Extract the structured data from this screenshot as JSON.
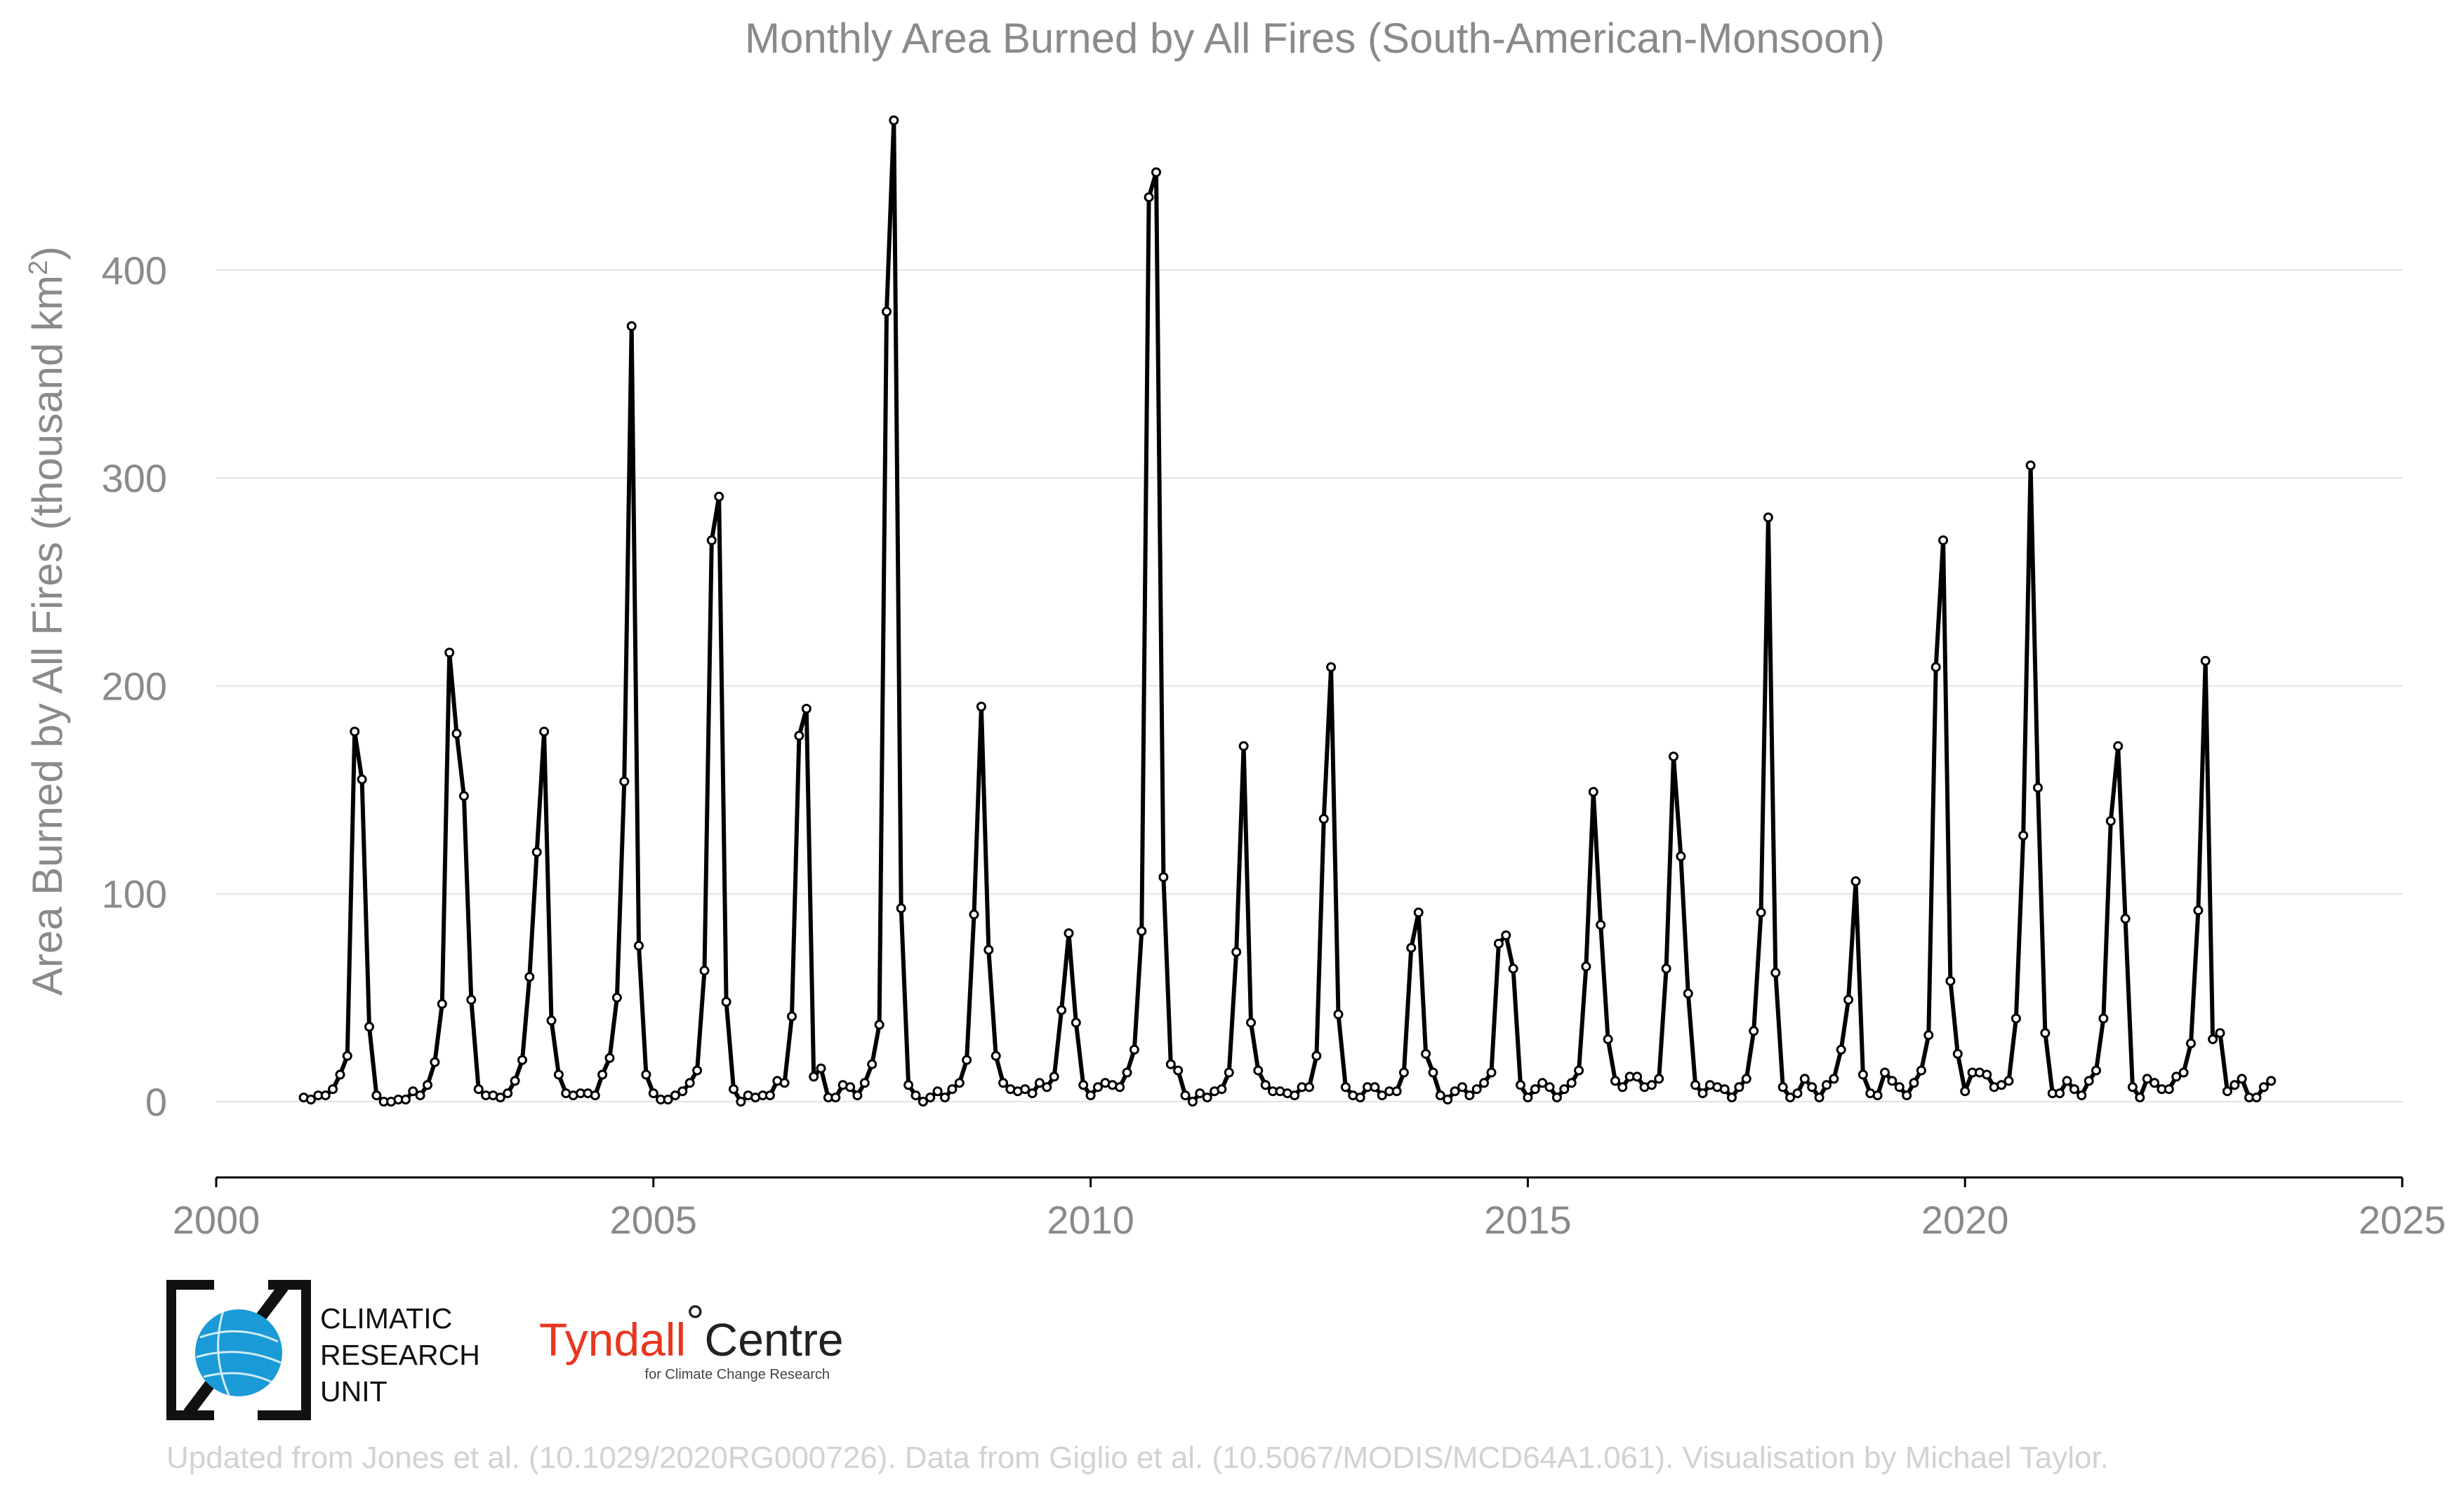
{
  "chart_data": {
    "type": "line",
    "title": "Monthly Area Burned by All Fires (South-American-Monsoon)",
    "ylabel": "Area Burned by All Fires (thousand km",
    "ylabel_sup": "2",
    "ylabel_close": ")",
    "xlabel": "",
    "x_start": "2001-01",
    "x_step": "monthly",
    "xlim": [
      2000,
      2025
    ],
    "ylim": [
      -37,
      470
    ],
    "xticks": [
      2000,
      2005,
      2010,
      2015,
      2020,
      2025
    ],
    "xtick_labels": [
      "2000",
      "2005",
      "2010",
      "2015",
      "2020",
      "2025"
    ],
    "yticks": [
      0,
      100,
      200,
      300,
      400
    ],
    "ytick_labels": [
      "0",
      "100",
      "200",
      "300",
      "400"
    ],
    "grid": "horizontal",
    "series": [
      {
        "values": [
          2,
          1,
          3,
          3,
          6,
          13,
          22,
          178,
          155,
          36,
          3,
          0,
          0,
          1,
          1,
          5,
          3,
          8,
          19,
          47,
          216,
          177,
          147,
          49,
          6,
          3,
          3,
          2,
          4,
          10,
          20,
          60,
          120,
          178,
          39,
          13,
          4,
          3,
          4,
          4,
          3,
          13,
          21,
          50,
          154,
          373,
          75,
          13,
          4,
          1,
          1,
          3,
          5,
          9,
          15,
          63,
          270,
          291,
          48,
          6,
          0,
          3,
          2,
          3,
          3,
          10,
          9,
          41,
          176,
          189,
          12,
          16,
          2,
          2,
          8,
          7,
          3,
          9,
          18,
          37,
          380,
          472,
          93,
          8,
          3,
          0,
          2,
          5,
          2,
          6,
          9,
          20,
          90,
          190,
          73,
          22,
          9,
          6,
          5,
          6,
          4,
          9,
          7,
          12,
          44,
          81,
          38,
          8,
          3,
          7,
          9,
          8,
          7,
          14,
          25,
          82,
          435,
          447,
          108,
          18,
          15,
          3,
          0,
          4,
          2,
          5,
          6,
          14,
          72,
          171,
          38,
          15,
          8,
          5,
          5,
          4,
          3,
          7,
          7,
          22,
          136,
          209,
          42,
          7,
          3,
          2,
          7,
          7,
          3,
          5,
          5,
          14,
          74,
          91,
          23,
          14,
          3,
          1,
          5,
          7,
          3,
          6,
          9,
          14,
          76,
          80,
          64,
          8,
          2,
          6,
          9,
          7,
          2,
          6,
          9,
          15,
          65,
          149,
          85,
          30,
          10,
          7,
          12,
          12,
          7,
          8,
          11,
          64,
          166,
          118,
          52,
          8,
          4,
          8,
          7,
          6,
          2,
          7,
          11,
          34,
          91,
          281,
          62,
          7,
          2,
          4,
          11,
          7,
          2,
          8,
          11,
          25,
          49,
          106,
          13,
          4,
          3,
          14,
          10,
          7,
          3,
          9,
          15,
          32,
          209,
          270,
          58,
          23,
          5,
          14,
          14,
          13,
          7,
          8,
          10,
          40,
          128,
          306,
          151,
          33,
          4,
          4,
          10,
          6,
          3,
          10,
          15,
          40,
          135,
          171,
          88,
          7,
          2,
          11,
          9,
          6,
          6,
          12,
          14,
          28,
          92,
          212,
          30,
          33,
          5,
          8,
          11,
          2,
          2,
          7,
          10
        ]
      }
    ]
  },
  "logos": {
    "cru_lines": [
      "CLIMATIC",
      "RESEARCH",
      "UNIT"
    ],
    "tyndall_name": "Tyndall",
    "tyndall_degree": "°",
    "tyndall_centre": "Centre",
    "tyndall_sub": "for Climate Change Research"
  },
  "footer": "Updated from Jones et al. (10.1029/2020RG000726). Data from Giglio et al. (10.5067/MODIS/MCD64A1.061). Visualisation by Michael Taylor.",
  "colors": {
    "line": "#000000",
    "marker_fill": "#ffffff",
    "cru_blue": "#1a9ad6",
    "tyndall_red": "#e8361f"
  }
}
